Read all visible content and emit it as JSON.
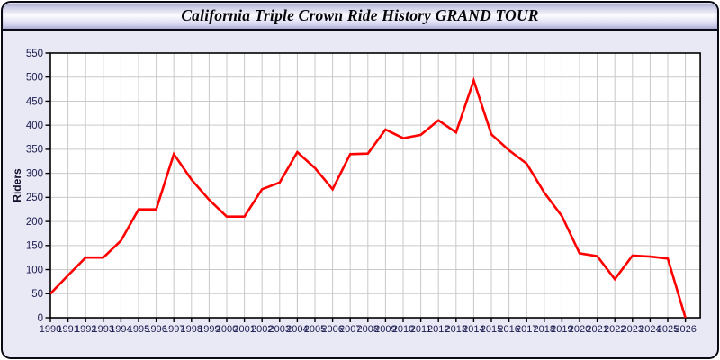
{
  "window": {
    "title": "California Triple Crown Ride History GRAND TOUR"
  },
  "chart_data": {
    "type": "line",
    "title": "California Triple Crown Ride History GRAND TOUR",
    "ylabel": "Riders",
    "xlabel": "",
    "categories": [
      1990,
      1991,
      1992,
      1993,
      1994,
      1995,
      1996,
      1997,
      1998,
      1999,
      2000,
      2001,
      2002,
      2003,
      2004,
      2005,
      2006,
      2007,
      2008,
      2009,
      2010,
      2011,
      2012,
      2013,
      2014,
      2015,
      2016,
      2017,
      2018,
      2019,
      2020,
      2021,
      2022,
      2023,
      2024,
      2025,
      2026
    ],
    "series": [
      {
        "name": "Riders",
        "color": "#ff0000",
        "values": [
          50,
          88,
          125,
          125,
          160,
          225,
          225,
          340,
          287,
          245,
          210,
          210,
          267,
          281,
          344,
          311,
          267,
          340,
          341,
          391,
          373,
          380,
          410,
          385,
          493,
          381,
          348,
          320,
          260,
          211,
          134,
          128,
          80,
          129,
          127,
          123,
          0
        ]
      }
    ],
    "ylim": [
      0,
      550
    ],
    "ytick_step": 50,
    "grid": true,
    "legend_position": "none",
    "colors": {
      "plot_background": "#ffffff",
      "grid_color": "#c9c9c9",
      "axis_color": "#000000",
      "tick_label_color": "#1c1c50",
      "axis_title_color": "#0d0d28"
    }
  }
}
